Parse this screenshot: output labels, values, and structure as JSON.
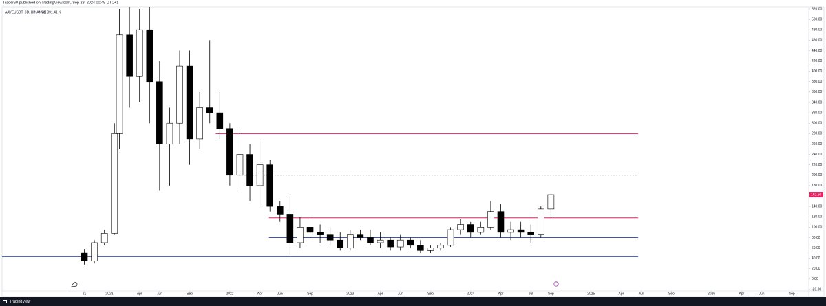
{
  "chart_data": {
    "type": "candlestick",
    "header": "Trader60 published on TradingView.com, Sep 23, 2024 00:45 UTC+1",
    "title": "AAVEUSDT, 3D, BINANCE",
    "subtitle": "Vol 391.41 K",
    "brand": "TradingView",
    "up_color": "#ffffff",
    "down_color": "#000000",
    "x": [
      -2.5,
      -1.5,
      -0.5,
      0.5,
      1,
      2,
      3,
      4,
      5,
      6,
      7,
      8,
      9,
      10,
      11,
      12,
      13,
      14,
      15,
      16,
      17,
      18,
      19,
      20,
      21,
      22,
      23,
      24,
      25,
      26,
      27,
      28,
      29,
      30,
      31,
      32,
      33,
      34,
      35,
      36,
      37,
      38,
      39,
      40,
      41,
      42,
      43,
      44
    ],
    "open": [
      50,
      35,
      70,
      88,
      280,
      470,
      390,
      480,
      380,
      260,
      300,
      410,
      270,
      330,
      320,
      290,
      200,
      240,
      180,
      220,
      140,
      125,
      70,
      100,
      90,
      85,
      75,
      60,
      85,
      80,
      70,
      75,
      62,
      75,
      65,
      55,
      60,
      65,
      95,
      105,
      90,
      100,
      130,
      90,
      95,
      90,
      85,
      135
    ],
    "high": [
      58,
      75,
      95,
      300,
      520,
      540,
      520,
      540,
      420,
      330,
      440,
      440,
      360,
      460,
      360,
      300,
      290,
      260,
      270,
      230,
      150,
      160,
      120,
      115,
      105,
      100,
      90,
      95,
      95,
      95,
      90,
      80,
      85,
      80,
      75,
      65,
      70,
      100,
      115,
      110,
      110,
      150,
      145,
      110,
      110,
      105,
      140,
      165
    ],
    "low": [
      28,
      30,
      65,
      85,
      250,
      330,
      340,
      300,
      170,
      180,
      260,
      220,
      250,
      300,
      270,
      180,
      170,
      150,
      140,
      130,
      110,
      45,
      60,
      75,
      70,
      65,
      55,
      55,
      75,
      65,
      60,
      55,
      55,
      60,
      50,
      50,
      55,
      62,
      85,
      80,
      85,
      95,
      80,
      75,
      80,
      70,
      80,
      115
    ],
    "close": [
      35,
      70,
      88,
      280,
      470,
      390,
      480,
      380,
      260,
      300,
      410,
      270,
      330,
      320,
      290,
      200,
      240,
      180,
      220,
      140,
      125,
      70,
      100,
      90,
      85,
      75,
      60,
      85,
      80,
      70,
      75,
      62,
      75,
      65,
      55,
      60,
      65,
      95,
      105,
      90,
      100,
      130,
      90,
      95,
      90,
      85,
      135,
      162.6
    ],
    "last_price_label": "162.60",
    "last_price_color": "#e91e63",
    "levels": [
      {
        "value": 280,
        "from": 10.6,
        "to": 52.7,
        "color": "#e91e63",
        "dashed": false
      },
      {
        "value": 200,
        "from": 12.9,
        "to": 52.7,
        "color": "#9e9e9e",
        "dashed": true
      },
      {
        "value": 118,
        "from": 15.9,
        "to": 52.7,
        "color": "#e91e63",
        "dashed": false
      },
      {
        "value": 80,
        "from": 15.9,
        "to": 52.7,
        "color": "#3f51b5",
        "dashed": false
      },
      {
        "value": 43,
        "from": -10.7,
        "to": 52.7,
        "color": "#3f51b5",
        "dashed": false
      }
    ],
    "xlim": [
      -10.7,
      69.7
    ],
    "ylim": [
      -20,
      520
    ],
    "xticks": [
      {
        "value": -2.5,
        "label": "21"
      },
      {
        "value": 0,
        "label": "2021"
      },
      {
        "value": 3,
        "label": "Apr"
      },
      {
        "value": 5,
        "label": "Jun"
      },
      {
        "value": 8,
        "label": "Sep"
      },
      {
        "value": 12,
        "label": "2022"
      },
      {
        "value": 15,
        "label": "Apr"
      },
      {
        "value": 17,
        "label": "Jun"
      },
      {
        "value": 20,
        "label": "Sep"
      },
      {
        "value": 24,
        "label": "2023"
      },
      {
        "value": 27,
        "label": "Apr"
      },
      {
        "value": 29,
        "label": "Jun"
      },
      {
        "value": 32,
        "label": "Sep"
      },
      {
        "value": 36,
        "label": "2024"
      },
      {
        "value": 39,
        "label": "Apr"
      },
      {
        "value": 42,
        "label": "Jul"
      },
      {
        "value": 44,
        "label": "Sep"
      },
      {
        "value": 48,
        "label": "2025"
      },
      {
        "value": 51,
        "label": "Apr"
      },
      {
        "value": 53,
        "label": "Jun"
      },
      {
        "value": 56,
        "label": "Sep"
      },
      {
        "value": 60,
        "label": "2026"
      },
      {
        "value": 63,
        "label": "Apr"
      },
      {
        "value": 65,
        "label": "Jun"
      },
      {
        "value": 68,
        "label": "Sep"
      }
    ],
    "yticks": [
      {
        "value": -20,
        "label": "-20.00"
      },
      {
        "value": 0,
        "label": "0.00"
      },
      {
        "value": 20,
        "label": "20.00"
      },
      {
        "value": 40,
        "label": "40.00"
      },
      {
        "value": 60,
        "label": "60.00"
      },
      {
        "value": 80,
        "label": "80.00"
      },
      {
        "value": 100,
        "label": "100.00"
      },
      {
        "value": 120,
        "label": "120.00"
      },
      {
        "value": 140,
        "label": "140.00"
      },
      {
        "value": 160,
        "label": "160.00"
      },
      {
        "value": 180,
        "label": "180.00"
      },
      {
        "value": 200,
        "label": "200.00"
      },
      {
        "value": 220,
        "label": "220.00"
      },
      {
        "value": 240,
        "label": "240.00"
      },
      {
        "value": 260,
        "label": "260.00"
      },
      {
        "value": 280,
        "label": "280.00"
      },
      {
        "value": 300,
        "label": "300.00"
      },
      {
        "value": 320,
        "label": "320.00"
      },
      {
        "value": 340,
        "label": "340.00"
      },
      {
        "value": 360,
        "label": "360.00"
      },
      {
        "value": 380,
        "label": "380.00"
      },
      {
        "value": 400,
        "label": "400.00"
      },
      {
        "value": 420,
        "label": "420.00"
      },
      {
        "value": 440,
        "label": "440.00"
      },
      {
        "value": 460,
        "label": "460.00"
      },
      {
        "value": 480,
        "label": "480.00"
      },
      {
        "value": 500,
        "label": "500.00"
      },
      {
        "value": 520,
        "label": "520.00"
      }
    ]
  }
}
